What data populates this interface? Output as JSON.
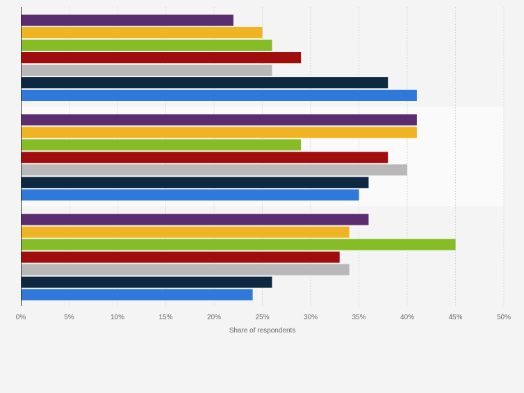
{
  "chart_data": {
    "type": "bar",
    "orientation": "horizontal",
    "xlabel": "Share of respondents",
    "xlim": [
      0,
      50
    ],
    "x_ticks": [
      "0%",
      "5%",
      "10%",
      "15%",
      "20%",
      "25%",
      "30%",
      "35%",
      "40%",
      "45%",
      "50%"
    ],
    "grid": true,
    "legend": "none",
    "groups": 3,
    "series": [
      {
        "color": "#5b2c6f",
        "values": [
          22,
          41,
          36
        ]
      },
      {
        "color": "#f0b323",
        "values": [
          25,
          41,
          34
        ]
      },
      {
        "color": "#86bc25",
        "values": [
          26,
          29,
          45
        ]
      },
      {
        "color": "#a10c0c",
        "values": [
          29,
          38,
          33
        ]
      },
      {
        "color": "#b8b8b8",
        "values": [
          26,
          40,
          34
        ]
      },
      {
        "color": "#0e2841",
        "values": [
          38,
          36,
          26
        ]
      },
      {
        "color": "#2e79d9",
        "values": [
          41,
          35,
          24
        ]
      }
    ],
    "band_colors": [
      "#f4f4f4",
      "#fafafa",
      "#f4f4f4"
    ],
    "grid_color": "#d7d7d7",
    "axis_color": "#333333"
  }
}
